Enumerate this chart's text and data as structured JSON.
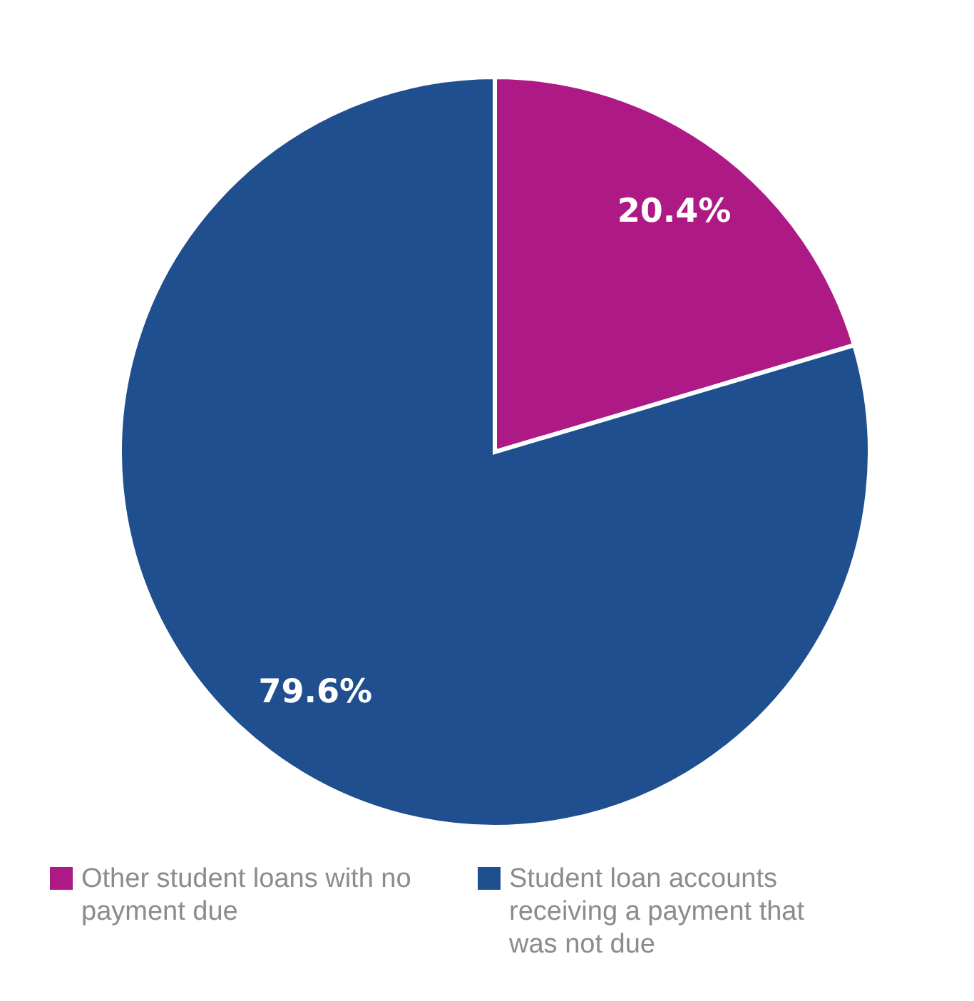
{
  "chart_data": {
    "type": "pie",
    "categories": [
      "Other student loans with no payment due",
      "Student loan accounts receiving a payment that was not due"
    ],
    "values": [
      20.4,
      79.6
    ],
    "colors": [
      "#ae1a85",
      "#1f4f8e"
    ],
    "value_labels": [
      "20.4%",
      "79.6%"
    ],
    "legend": "bottom"
  }
}
